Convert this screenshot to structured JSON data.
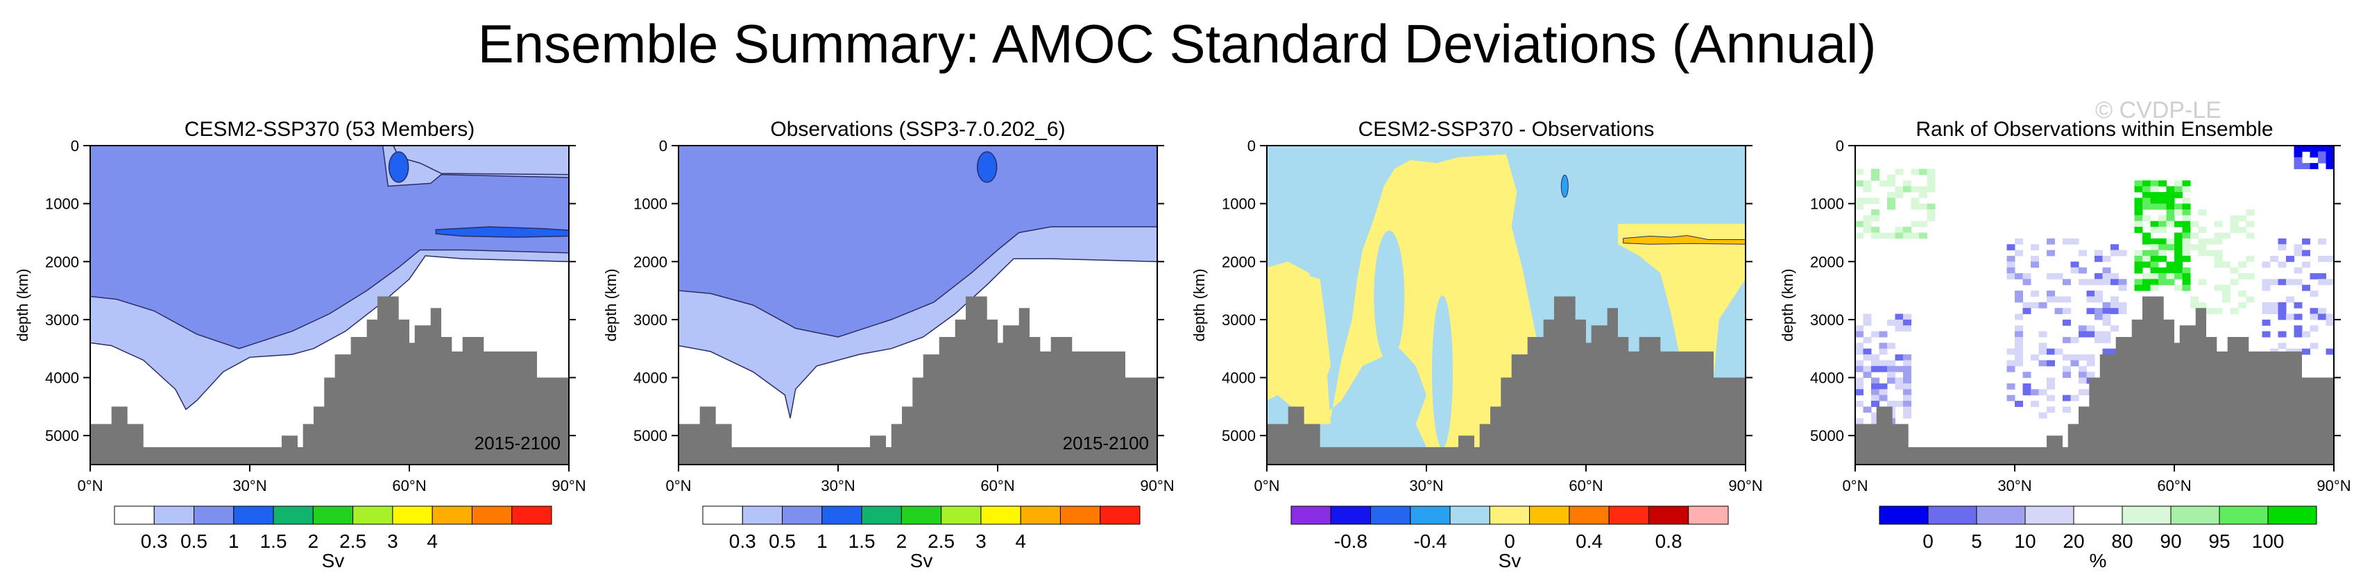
{
  "title": "Ensemble Summary: AMOC Standard Deviations (Annual)",
  "watermark": "© CVDP-LE",
  "colors": {
    "land": "#777777",
    "contour_line": "#2b2b66"
  },
  "chart_data": [
    {
      "type": "contour",
      "title": "CESM2-SSP370 (53 Members)",
      "ylabel": "depth (km)",
      "xlabel": "",
      "x_ticks": [
        "0°N",
        "30°N",
        "60°N",
        "90°N"
      ],
      "y_ticks": [
        "0",
        "1000",
        "2000",
        "3000",
        "4000",
        "5000"
      ],
      "xlim": [
        0,
        90
      ],
      "ylim": [
        5500,
        0
      ],
      "annotation": "2015-2100",
      "colorbar": {
        "unit": "Sv",
        "labels": [
          "0.3",
          "0.5",
          "1",
          "1.5",
          "2",
          "2.5",
          "3",
          "4"
        ],
        "colors": [
          "#ffffff",
          "#b4c4f8",
          "#7d90ee",
          "#1f62f2",
          "#11b46c",
          "#22d21f",
          "#a8f028",
          "#fff800",
          "#ffae00",
          "#ff7800",
          "#ff2010"
        ]
      },
      "regions": {
        "level_0p3_0p5": "#b4c4f8",
        "level_0p5_1": "#7d90ee",
        "level_1_1p5": "#1f62f2"
      }
    },
    {
      "type": "contour",
      "title": "Observations (SSP3-7.0.202_6)",
      "ylabel": "depth (km)",
      "xlabel": "",
      "x_ticks": [
        "0°N",
        "30°N",
        "60°N",
        "90°N"
      ],
      "y_ticks": [
        "0",
        "1000",
        "2000",
        "3000",
        "4000",
        "5000"
      ],
      "xlim": [
        0,
        90
      ],
      "ylim": [
        5500,
        0
      ],
      "annotation": "2015-2100",
      "colorbar": {
        "unit": "Sv",
        "labels": [
          "0.3",
          "0.5",
          "1",
          "1.5",
          "2",
          "2.5",
          "3",
          "4"
        ],
        "colors": [
          "#ffffff",
          "#b4c4f8",
          "#7d90ee",
          "#1f62f2",
          "#11b46c",
          "#22d21f",
          "#a8f028",
          "#fff800",
          "#ffae00",
          "#ff7800",
          "#ff2010"
        ]
      }
    },
    {
      "type": "contour",
      "title": "CESM2-SSP370 - Observations",
      "ylabel": "depth (km)",
      "xlabel": "",
      "x_ticks": [
        "0°N",
        "30°N",
        "60°N",
        "90°N"
      ],
      "y_ticks": [
        "0",
        "1000",
        "2000",
        "3000",
        "4000",
        "5000"
      ],
      "xlim": [
        0,
        90
      ],
      "ylim": [
        5500,
        0
      ],
      "colorbar": {
        "unit": "Sv",
        "labels": [
          "-0.8",
          "-0.4",
          "0",
          "0.4",
          "0.8"
        ],
        "label_slots": [
          1.5,
          3.5,
          5.5,
          7.5,
          9.5
        ],
        "colors": [
          "#8a2ee6",
          "#1414f0",
          "#2466f0",
          "#2aa0f0",
          "#a8daf0",
          "#fff27a",
          "#ffc000",
          "#ff7a00",
          "#ff2a10",
          "#c80000",
          "#ffb0b0"
        ]
      }
    },
    {
      "type": "heatmap",
      "title": "Rank of Observations within Ensemble",
      "ylabel": "depth (km)",
      "xlabel": "",
      "x_ticks": [
        "0°N",
        "30°N",
        "60°N",
        "90°N"
      ],
      "y_ticks": [
        "0",
        "1000",
        "2000",
        "3000",
        "4000",
        "5000"
      ],
      "xlim": [
        0,
        90
      ],
      "ylim": [
        5500,
        0
      ],
      "colorbar": {
        "unit": "%",
        "labels": [
          "0",
          "5",
          "10",
          "20",
          "80",
          "90",
          "95",
          "100"
        ],
        "label_slots": [
          1,
          2,
          3,
          4,
          5,
          6,
          7,
          8
        ],
        "colors": [
          "#0000f0",
          "#6b6bf0",
          "#a0a0f0",
          "#d6d6f8",
          "#ffffff",
          "#d8f8d8",
          "#a8f0a8",
          "#60ec60",
          "#00dc00"
        ]
      }
    }
  ]
}
